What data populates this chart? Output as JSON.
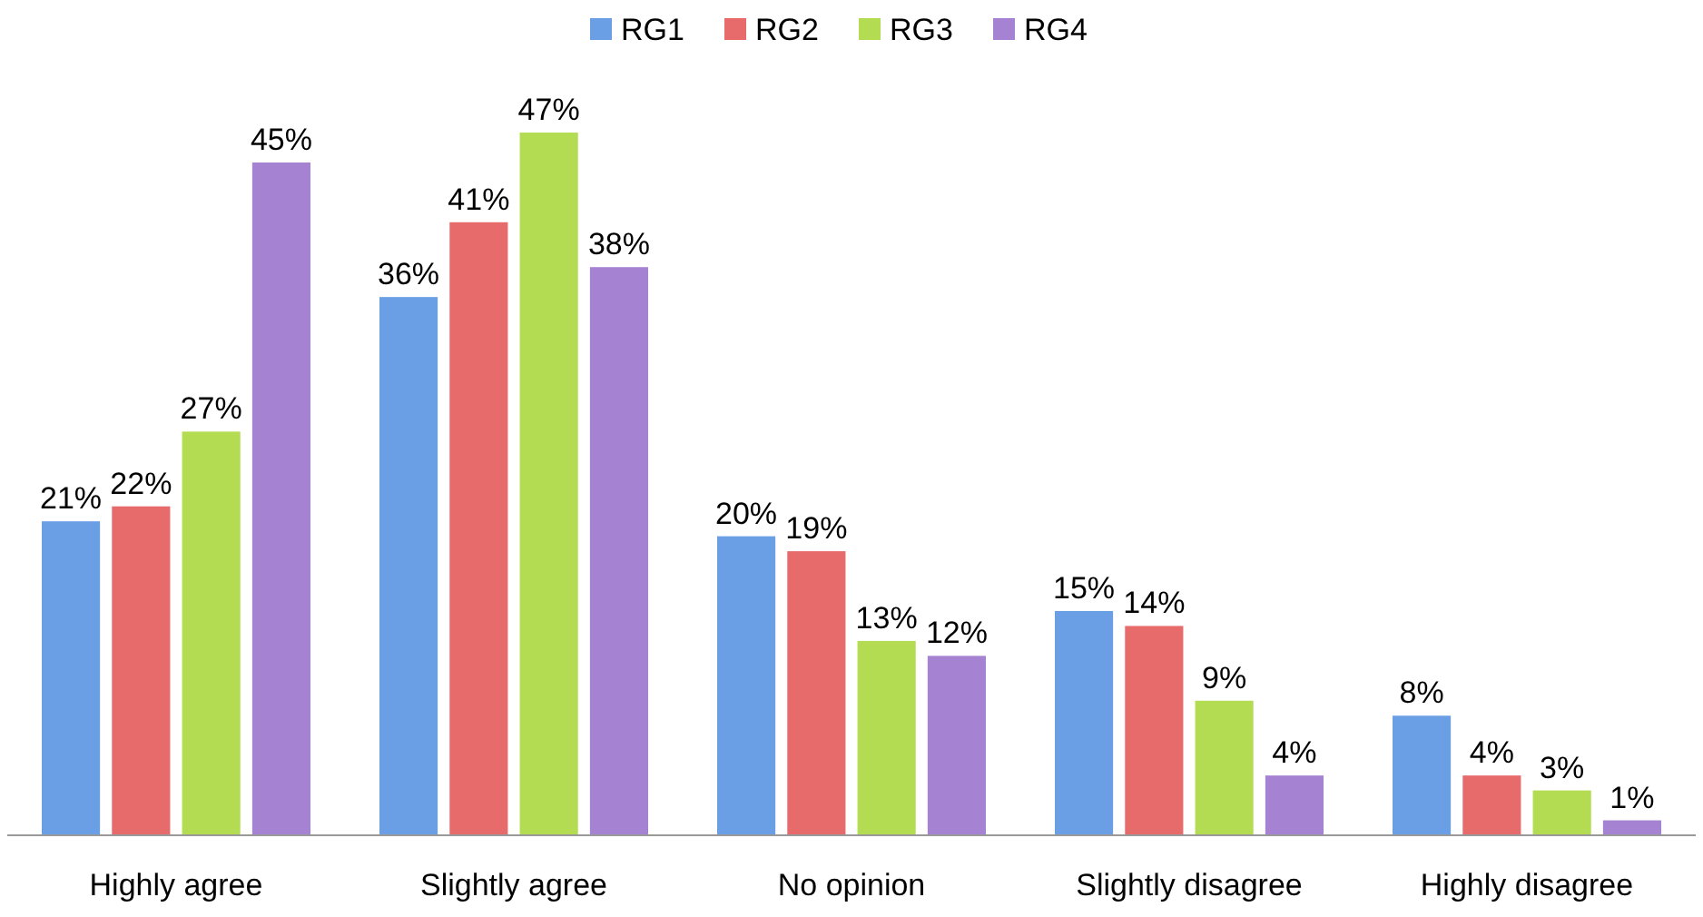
{
  "chart_data": {
    "type": "bar",
    "categories": [
      "Highly agree",
      "Slightly agree",
      "No opinion",
      "Slightly disagree",
      "Highly disagree"
    ],
    "legend": "top",
    "series": [
      {
        "name": "RG1",
        "color": "#6a9fe6",
        "values": [
          21,
          36,
          20,
          15,
          8
        ],
        "value_labels": [
          "21%",
          "36%",
          "20%",
          "15%",
          "8%"
        ]
      },
      {
        "name": "RG2",
        "color": "#e86b6b",
        "values": [
          22,
          41,
          19,
          14,
          4
        ],
        "value_labels": [
          "22%",
          "41%",
          "19%",
          "14%",
          "4%"
        ]
      },
      {
        "name": "RG3",
        "color": "#b4dc52",
        "values": [
          27,
          47,
          13,
          9,
          3
        ],
        "value_labels": [
          "27%",
          "47%",
          "13%",
          "9%",
          "3%"
        ]
      },
      {
        "name": "RG4",
        "color": "#a683d2",
        "values": [
          45,
          38,
          12,
          4,
          1
        ],
        "value_labels": [
          "45%",
          "38%",
          "12%",
          "4%",
          "1%"
        ]
      }
    ]
  }
}
